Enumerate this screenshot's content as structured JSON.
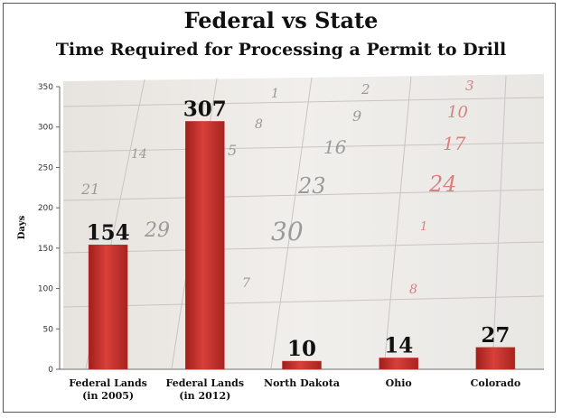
{
  "title": "Federal vs State",
  "subtitle": "Time Required for Processing a Permit to Drill",
  "chart_data": {
    "type": "bar",
    "categories": [
      "Federal Lands (in 2005)",
      "Federal Lands (in 2012)",
      "North Dakota",
      "Ohio",
      "Colorado"
    ],
    "category_lines": [
      [
        "Federal Lands",
        "(in 2005)"
      ],
      [
        "Federal Lands",
        "(in 2012)"
      ],
      [
        "North Dakota"
      ],
      [
        "Ohio"
      ],
      [
        "Colorado"
      ]
    ],
    "values": [
      154,
      307,
      10,
      14,
      27
    ],
    "ylabel": "Days",
    "xlabel": "",
    "ylim": [
      0,
      350
    ],
    "yticks": [
      0,
      50,
      100,
      150,
      200,
      250,
      300,
      350
    ],
    "bar_color": "#c0302b",
    "grid": false,
    "legend": "none"
  }
}
